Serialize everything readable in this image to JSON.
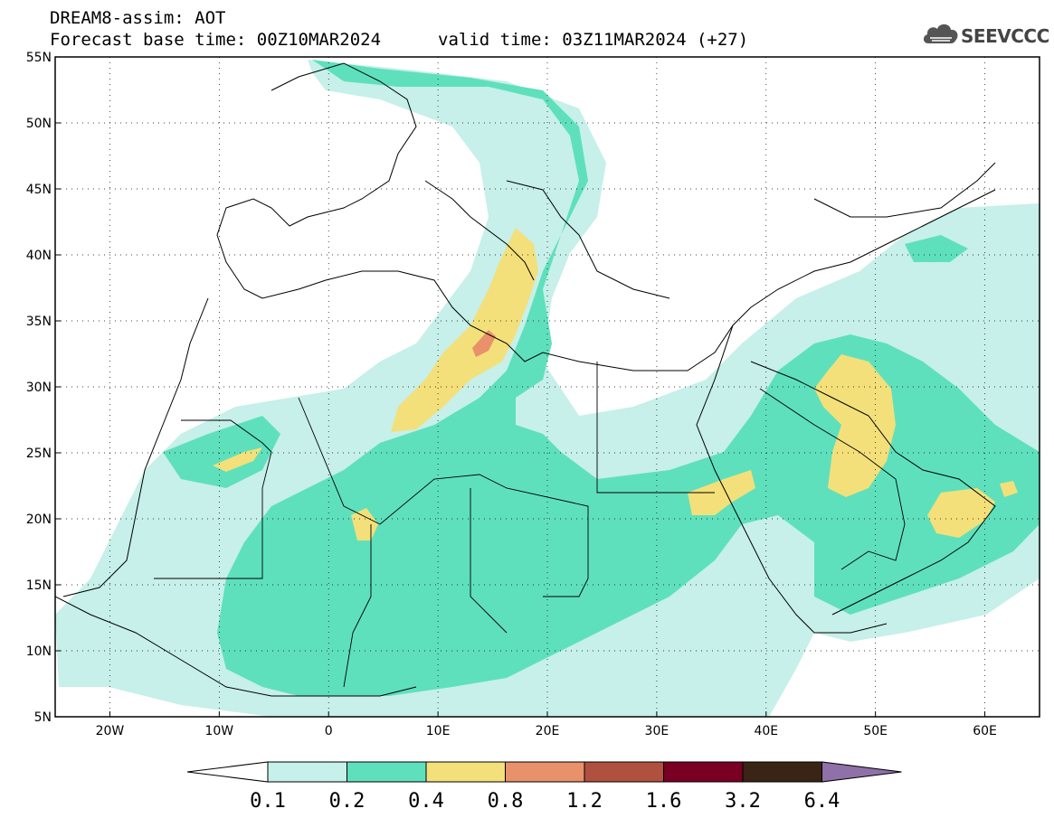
{
  "header": {
    "title": "DREAM8-assim: AOT",
    "base_time": "Forecast base time: 00Z10MAR2024",
    "valid_time": "valid time: 03Z11MAR2024 (+27)"
  },
  "logo": {
    "text": "SEEVCCC",
    "icon": "cloud-icon"
  },
  "map": {
    "lat_labels": [
      "55N",
      "50N",
      "45N",
      "40N",
      "35N",
      "30N",
      "25N",
      "20N",
      "15N",
      "10N",
      "5N"
    ],
    "lon_labels": [
      "20W",
      "10W",
      "0",
      "10E",
      "20E",
      "30E",
      "40E",
      "50E",
      "60E"
    ],
    "lat_values": [
      55,
      50,
      45,
      40,
      35,
      30,
      25,
      20,
      15,
      10,
      5
    ],
    "lon_values": [
      -20,
      -10,
      0,
      10,
      20,
      30,
      40,
      50,
      60
    ],
    "extent": {
      "lon_min": -25,
      "lon_max": 65,
      "lat_min": 5,
      "lat_max": 55
    },
    "gridlines": "dotted"
  },
  "legend": {
    "ticks": [
      "0.1",
      "0.2",
      "0.4",
      "0.8",
      "1.2",
      "1.6",
      "3.2",
      "6.4"
    ],
    "colors": [
      "#c6f0e9",
      "#5fe0bc",
      "#f3e07a",
      "#e8916a",
      "#b0513f",
      "#7a0023",
      "#3a2416",
      "#8f70a8"
    ],
    "under_color": "#ffffff"
  }
}
